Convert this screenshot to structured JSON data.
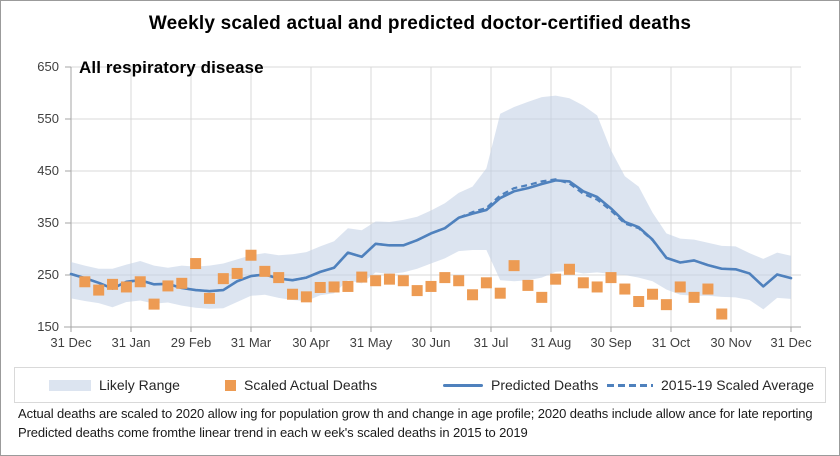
{
  "figure": {
    "title": "Weekly scaled actual and predicted doctor-certified deaths",
    "annotation": "All respiratory disease"
  },
  "legend": {
    "items": [
      {
        "label": "Likely Range",
        "swatch": "band"
      },
      {
        "label": "Scaled Actual Deaths",
        "swatch": "square"
      },
      {
        "label": "Predicted Deaths",
        "swatch": "solid-line"
      },
      {
        "label": "2015-19 Scaled Average",
        "swatch": "dashed-line"
      }
    ]
  },
  "footnotes": [
    "Actual deaths are scaled to 2020 allow ing for population grow th and change in age profile; 2020 deaths include allow ance for late reporting",
    "Predicted deaths come fromthe linear trend in each w eek's scaled deaths in 2015 to 2019"
  ],
  "colors": {
    "band_fill": "#BFCEE4",
    "band_legend": "#DCE4F0",
    "line_blue": "#4F81BD",
    "actual_orange": "#ED9B53",
    "grid": "#D9D9D9",
    "axis": "#A6A6A6",
    "tick_text": "#3F3F3F"
  },
  "chart_data": {
    "type": "line",
    "title": "Weekly scaled actual and predicted doctor-certified deaths",
    "subtitle": "All respiratory disease",
    "weeks": 53,
    "x_interval": "weekly, 31 Dec 2019 to 31 Dec 2020",
    "x_tick_labels": [
      "31 Dec",
      "31 Jan",
      "29 Feb",
      "31 Mar",
      "30 Apr",
      "31 May",
      "30 Jun",
      "31 Jul",
      "31 Aug",
      "30 Sep",
      "31 Oct",
      "30 Nov",
      "31 Dec"
    ],
    "y_ticks": [
      150,
      250,
      350,
      450,
      550,
      650
    ],
    "ylim": [
      150,
      650
    ],
    "grid": true,
    "legend_position": "bottom",
    "series": [
      {
        "name": "Likely Range (upper)",
        "type": "band-upper",
        "values": [
          275,
          268,
          262,
          262,
          270,
          277,
          268,
          264,
          268,
          266,
          268,
          272,
          280,
          288,
          292,
          288,
          290,
          294,
          305,
          315,
          340,
          336,
          353,
          352,
          356,
          362,
          374,
          388,
          408,
          420,
          455,
          560,
          573,
          583,
          592,
          595,
          590,
          576,
          557,
          490,
          440,
          420,
          370,
          330,
          320,
          318,
          312,
          306,
          305,
          292,
          281,
          293,
          287
        ]
      },
      {
        "name": "Likely Range (lower)",
        "type": "band-lower",
        "values": [
          205,
          200,
          196,
          188,
          198,
          201,
          195,
          197,
          191,
          187,
          185,
          186,
          198,
          210,
          212,
          206,
          202,
          200,
          211,
          215,
          240,
          234,
          255,
          252,
          255,
          262,
          272,
          282,
          296,
          298,
          298,
          240,
          238,
          240,
          245,
          256,
          258,
          253,
          255,
          252,
          250,
          245,
          238,
          222,
          212,
          210,
          210,
          208,
          207,
          202,
          184,
          206,
          204
        ]
      },
      {
        "name": "Scaled Actual Deaths",
        "type": "scatter-square",
        "values": [
          null,
          237,
          221,
          232,
          227,
          237,
          194,
          229,
          234,
          272,
          205,
          243,
          253,
          288,
          257,
          245,
          213,
          208,
          226,
          227,
          228,
          246,
          239,
          242,
          239,
          220,
          228,
          245,
          239,
          212,
          235,
          215,
          268,
          230,
          207,
          242,
          261,
          235,
          227,
          245,
          223,
          199,
          213,
          193,
          227,
          207,
          223,
          175,
          null,
          null,
          null,
          null,
          null
        ]
      },
      {
        "name": "Predicted Deaths",
        "type": "line-solid",
        "values": [
          252,
          244,
          235,
          224,
          237,
          240,
          232,
          233,
          225,
          221,
          219,
          221,
          238,
          248,
          251,
          243,
          240,
          245,
          256,
          264,
          293,
          285,
          310,
          307,
          307,
          317,
          330,
          340,
          360,
          368,
          375,
          398,
          411,
          417,
          425,
          432,
          430,
          411,
          400,
          378,
          352,
          342,
          318,
          283,
          274,
          278,
          269,
          262,
          261,
          253,
          228,
          251,
          244
        ]
      },
      {
        "name": "2015-19 Scaled Average",
        "type": "line-dashed",
        "values": [
          252,
          244,
          235,
          224,
          237,
          240,
          232,
          233,
          225,
          221,
          219,
          221,
          238,
          248,
          251,
          243,
          240,
          245,
          256,
          264,
          293,
          285,
          310,
          307,
          307,
          317,
          330,
          340,
          360,
          371,
          379,
          403,
          417,
          423,
          430,
          434,
          426,
          406,
          395,
          374,
          349,
          340,
          317,
          283,
          274,
          278,
          269,
          262,
          261,
          253,
          228,
          251,
          244
        ]
      }
    ]
  }
}
